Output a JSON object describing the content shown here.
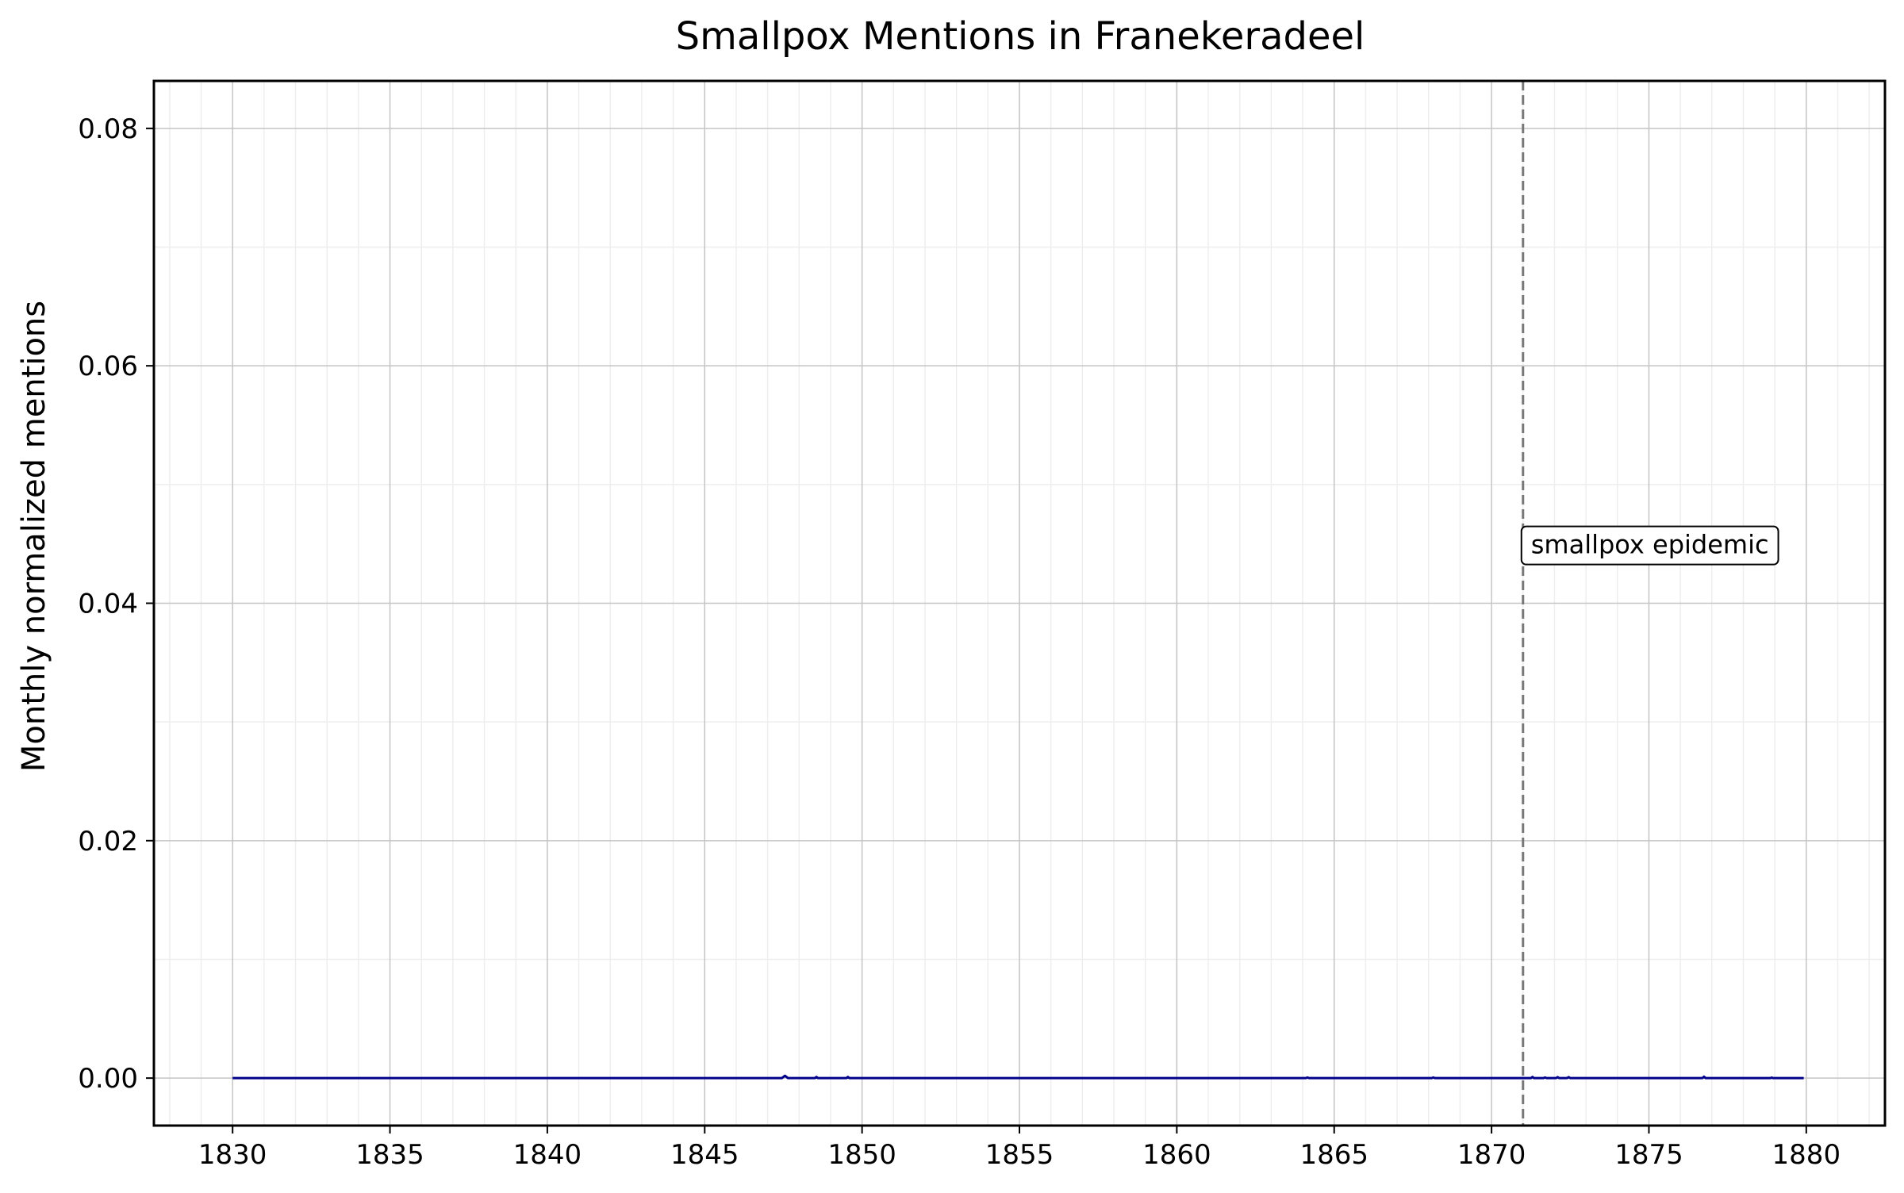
{
  "chart_data": {
    "type": "line",
    "title": "Smallpox Mentions in Franekeradeel",
    "xlabel": "",
    "ylabel": "Monthly normalized mentions",
    "xlim": [
      1827.5,
      1882.5
    ],
    "ylim": [
      -0.004,
      0.084
    ],
    "xticks": [
      1830,
      1835,
      1840,
      1845,
      1850,
      1855,
      1860,
      1865,
      1870,
      1875,
      1880
    ],
    "xtick_labels": [
      "1830",
      "1835",
      "1840",
      "1845",
      "1850",
      "1855",
      "1860",
      "1865",
      "1870",
      "1875",
      "1880"
    ],
    "yticks": [
      0.0,
      0.02,
      0.04,
      0.06,
      0.08
    ],
    "ytick_labels": [
      "0.00",
      "0.02",
      "0.04",
      "0.06",
      "0.08"
    ],
    "grid": true,
    "minor_grid": true,
    "series": [
      {
        "color": "#00008b",
        "points": [
          [
            1830.0,
            0.0
          ],
          [
            1847.45,
            0.0
          ],
          [
            1847.55,
            0.0002
          ],
          [
            1847.65,
            0.0
          ],
          [
            1848.5,
            0.0
          ],
          [
            1848.55,
            0.0001
          ],
          [
            1848.6,
            0.0
          ],
          [
            1849.5,
            0.0
          ],
          [
            1849.55,
            0.0001
          ],
          [
            1849.6,
            0.0
          ],
          [
            1864.1,
            0.0
          ],
          [
            1864.15,
            5e-05
          ],
          [
            1864.2,
            0.0
          ],
          [
            1868.1,
            0.0
          ],
          [
            1868.15,
            5e-05
          ],
          [
            1868.2,
            0.0
          ],
          [
            1871.25,
            0.0
          ],
          [
            1871.3,
            0.0001
          ],
          [
            1871.35,
            0.0
          ],
          [
            1871.65,
            0.0
          ],
          [
            1871.7,
            5e-05
          ],
          [
            1871.75,
            0.0
          ],
          [
            1872.05,
            0.0
          ],
          [
            1872.1,
            8e-05
          ],
          [
            1872.15,
            0.0
          ],
          [
            1872.4,
            0.0
          ],
          [
            1872.45,
            8e-05
          ],
          [
            1872.5,
            0.0
          ],
          [
            1876.7,
            0.0
          ],
          [
            1876.75,
            0.00012
          ],
          [
            1876.8,
            0.0
          ],
          [
            1878.85,
            0.0
          ],
          [
            1878.9,
            4e-05
          ],
          [
            1878.95,
            0.0
          ],
          [
            1879.92,
            0.0
          ]
        ]
      }
    ],
    "annotations": [
      {
        "type": "vline",
        "x": 1871.0,
        "style": "dashed",
        "color": "#777777"
      },
      {
        "type": "label",
        "text": "smallpox epidemic",
        "x": 1871.0,
        "y": 0.045
      }
    ]
  }
}
